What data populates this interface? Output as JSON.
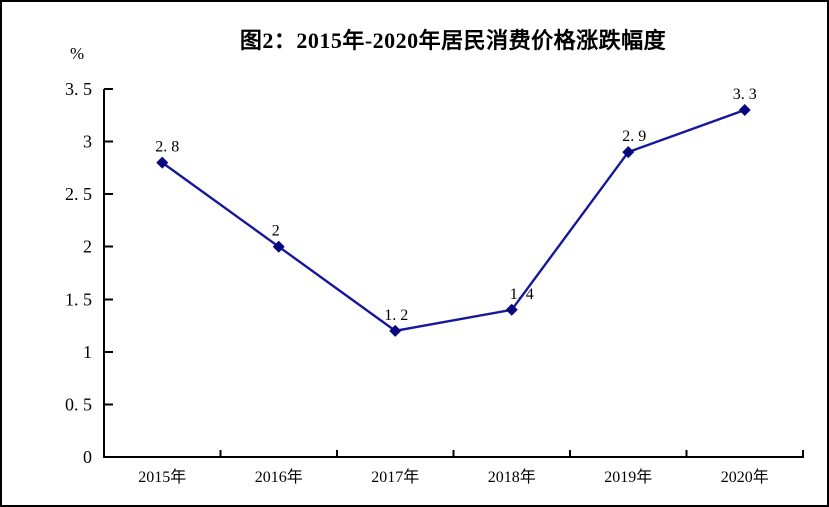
{
  "figure": {
    "title": "图2：2015年-2020年居民消费价格涨跌幅度",
    "y_unit_label": "%"
  },
  "chart_data": {
    "type": "line",
    "title": "图2：2015年-2020年居民消费价格涨跌幅度",
    "categories": [
      "2015年",
      "2016年",
      "2017年",
      "2018年",
      "2019年",
      "2020年"
    ],
    "values": [
      2.8,
      2,
      1.2,
      1.4,
      2.9,
      3.3
    ],
    "point_labels": [
      "2.8",
      "2",
      "1.2",
      "1.4",
      "2.9",
      "3.3"
    ],
    "xlabel": "",
    "ylabel": "%",
    "ylim": [
      0,
      3.5
    ],
    "y_ticks": [
      0,
      0.5,
      1,
      1.5,
      2,
      2.5,
      3,
      3.5
    ],
    "y_tick_labels": [
      "0",
      "0.5",
      "1",
      "1.5",
      "2",
      "2.5",
      "3",
      "3.5"
    ],
    "grid": false,
    "legend": "none",
    "marker_shape": "diamond",
    "colors": {
      "line": "#17179B",
      "marker": "#06067E",
      "axis": "#000000",
      "text": "#000000",
      "background": "#FFFFFF"
    }
  }
}
